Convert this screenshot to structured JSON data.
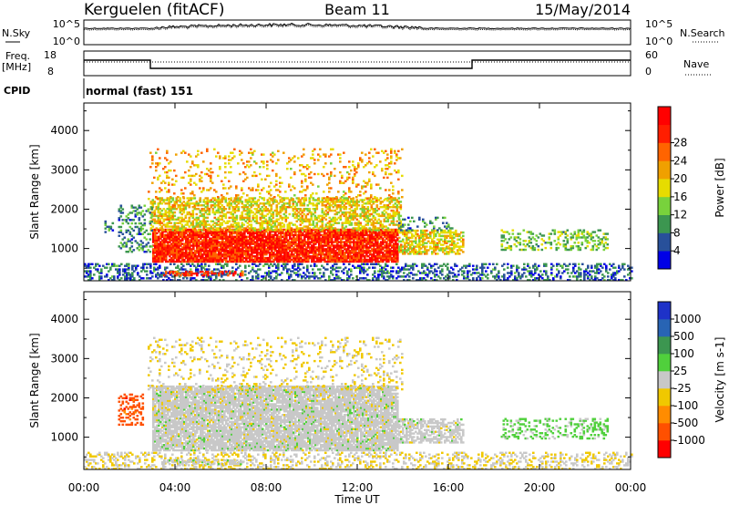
{
  "header": {
    "station": "Kerguelen (fitACF)",
    "beam": "Beam 11",
    "date": "15/May/2014"
  },
  "strip_labels": {
    "nsky": "N.Sky",
    "nsearch": "N.Search",
    "freq_line1": "Freq.",
    "freq_line2": "[MHz]",
    "nave": "Nave",
    "cpid": "CPID",
    "cpid_value": "normal (fast) 151"
  },
  "strip_ticks": {
    "noise_left": [
      "10^5",
      "10^0"
    ],
    "noise_right": [
      "10^5",
      "10^0"
    ],
    "freq_left": [
      "18",
      "8"
    ],
    "freq_right": [
      "60",
      "0"
    ]
  },
  "colors": {
    "power_scale": [
      "#0000e6",
      "#28509a",
      "#3c9650",
      "#78d23c",
      "#e6dc00",
      "#f0a000",
      "#ff6400",
      "#ff1e00",
      "#ff0000"
    ],
    "velocity_scale": [
      "#ff0000",
      "#ff5000",
      "#ff8c00",
      "#f0c800",
      "#c8c8c8",
      "#50d03c",
      "#3c9650",
      "#2864b4",
      "#1e32c8"
    ]
  },
  "chart_data": [
    {
      "type": "heatmap",
      "name": "power",
      "ylabel": "Slant Range [km]",
      "xlabel": "Time UT",
      "x_ticks": [
        "00:00",
        "04:00",
        "08:00",
        "12:00",
        "16:00",
        "20:00",
        "00:00"
      ],
      "xlim_hours": [
        0,
        24
      ],
      "y_ticks": [
        "1000",
        "2000",
        "3000",
        "4000"
      ],
      "ylim": [
        180,
        4700
      ],
      "colorbar": {
        "label": "Power [dB]",
        "ticks": [
          "4",
          "8",
          "12",
          "16",
          "20",
          "24",
          "28"
        ],
        "range": [
          0,
          32
        ]
      },
      "regions": [
        {
          "t0": 3.0,
          "t1": 13.8,
          "r0": 650,
          "r1": 1500,
          "val": 27,
          "dens": 0.9
        },
        {
          "t0": 2.9,
          "t1": 13.9,
          "r0": 1450,
          "r1": 2300,
          "val": 17,
          "dens": 0.55
        },
        {
          "t0": 2.8,
          "t1": 14.0,
          "r0": 2200,
          "r1": 3550,
          "val": 19,
          "dens": 0.13
        },
        {
          "t0": 13.8,
          "t1": 16.6,
          "r0": 850,
          "r1": 1450,
          "val": 17,
          "dens": 0.6
        },
        {
          "t0": 13.8,
          "t1": 16.2,
          "r0": 1450,
          "r1": 1800,
          "val": 8,
          "dens": 0.2
        },
        {
          "t0": 18.3,
          "t1": 23.0,
          "r0": 950,
          "r1": 1450,
          "val": 12,
          "dens": 0.3
        },
        {
          "t0": 1.5,
          "t1": 3.0,
          "r0": 900,
          "r1": 2100,
          "val": 8,
          "dens": 0.25
        },
        {
          "t0": 0.0,
          "t1": 24.0,
          "r0": 180,
          "r1": 600,
          "val": 6,
          "dens": 0.35
        },
        {
          "t0": 0.9,
          "t1": 1.3,
          "r0": 1400,
          "r1": 1700,
          "val": 8,
          "dens": 0.35
        },
        {
          "t0": 3.4,
          "t1": 7.0,
          "r0": 300,
          "r1": 420,
          "val": 26,
          "dens": 0.5
        }
      ]
    },
    {
      "type": "heatmap",
      "name": "velocity",
      "ylabel": "Slant Range [km]",
      "xlabel": "Time UT",
      "x_ticks": [
        "00:00",
        "04:00",
        "08:00",
        "12:00",
        "16:00",
        "20:00",
        "00:00"
      ],
      "xlim_hours": [
        0,
        24
      ],
      "y_ticks": [
        "1000",
        "2000",
        "3000",
        "4000"
      ],
      "ylim": [
        180,
        4700
      ],
      "colorbar": {
        "label": "Velocity [m s-1]",
        "ticks": [
          "-1000",
          "-500",
          "-100",
          "-25",
          "25",
          "100",
          "500",
          "1000"
        ],
        "range": [
          -1200,
          1200
        ]
      },
      "regions": [
        {
          "t0": 3.0,
          "t1": 13.8,
          "r0": 650,
          "r1": 2300,
          "val": 0,
          "dens": 0.85
        },
        {
          "t0": 2.8,
          "t1": 14.0,
          "r0": 2200,
          "r1": 3550,
          "val": -150,
          "dens": 0.13
        },
        {
          "t0": 13.8,
          "t1": 16.6,
          "r0": 850,
          "r1": 1450,
          "val": 0,
          "dens": 0.6
        },
        {
          "t0": 18.3,
          "t1": 23.0,
          "r0": 950,
          "r1": 1450,
          "val": 200,
          "dens": 0.3
        },
        {
          "t0": 1.5,
          "t1": 2.6,
          "r0": 1300,
          "r1": 2100,
          "val": -800,
          "dens": 0.35
        },
        {
          "t0": 0.0,
          "t1": 24.0,
          "r0": 180,
          "r1": 600,
          "val": -120,
          "dens": 0.3
        },
        {
          "t0": 3.4,
          "t1": 7.0,
          "r0": 300,
          "r1": 420,
          "val": 0,
          "dens": 0.5
        }
      ]
    }
  ]
}
